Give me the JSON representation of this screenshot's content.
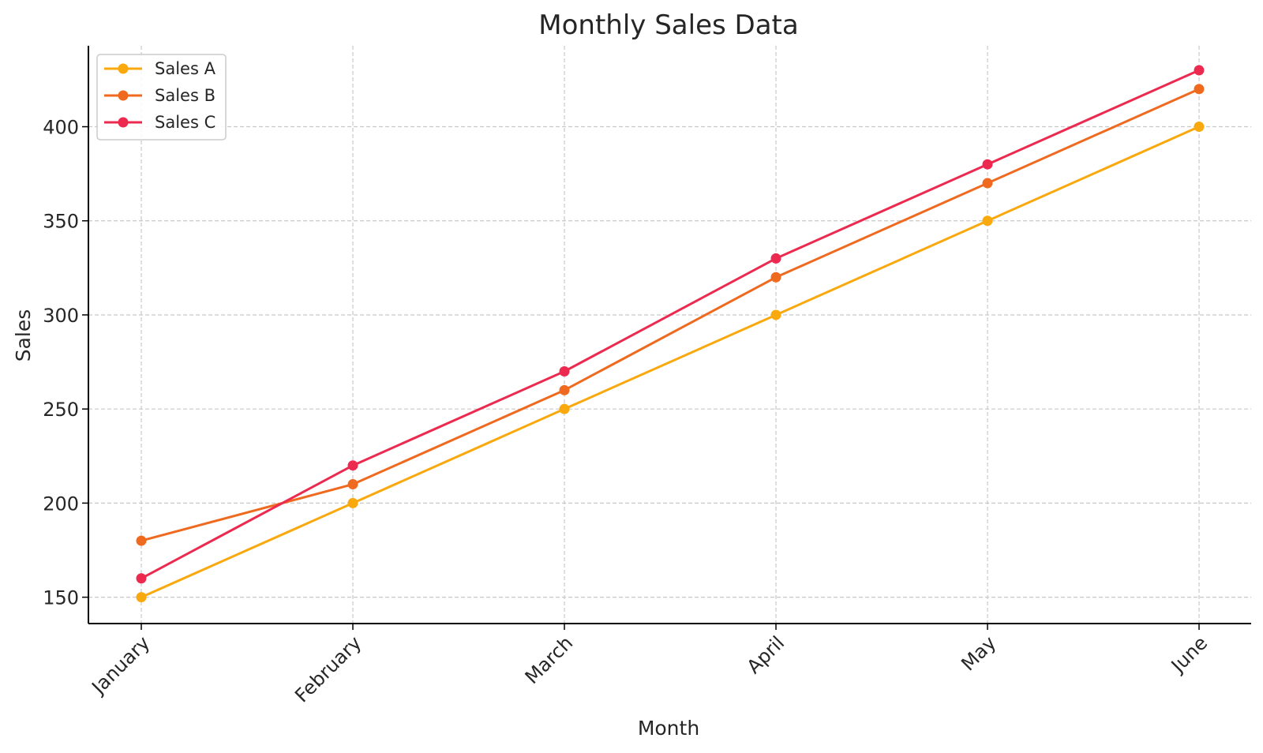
{
  "chart_data": {
    "type": "line",
    "title": "Monthly Sales Data",
    "xlabel": "Month",
    "ylabel": "Sales",
    "categories": [
      "January",
      "February",
      "March",
      "April",
      "May",
      "June"
    ],
    "yticks": [
      150,
      200,
      250,
      300,
      350,
      400
    ],
    "ylim": [
      136,
      443
    ],
    "grid": true,
    "legend_position": "top-left",
    "series": [
      {
        "name": "Sales A",
        "color": "#f9a80d",
        "values": [
          150,
          200,
          250,
          300,
          350,
          400
        ]
      },
      {
        "name": "Sales B",
        "color": "#ef6a1f",
        "values": [
          180,
          210,
          260,
          320,
          370,
          420
        ]
      },
      {
        "name": "Sales C",
        "color": "#ec2a4f",
        "values": [
          160,
          220,
          270,
          330,
          380,
          430
        ]
      }
    ]
  }
}
